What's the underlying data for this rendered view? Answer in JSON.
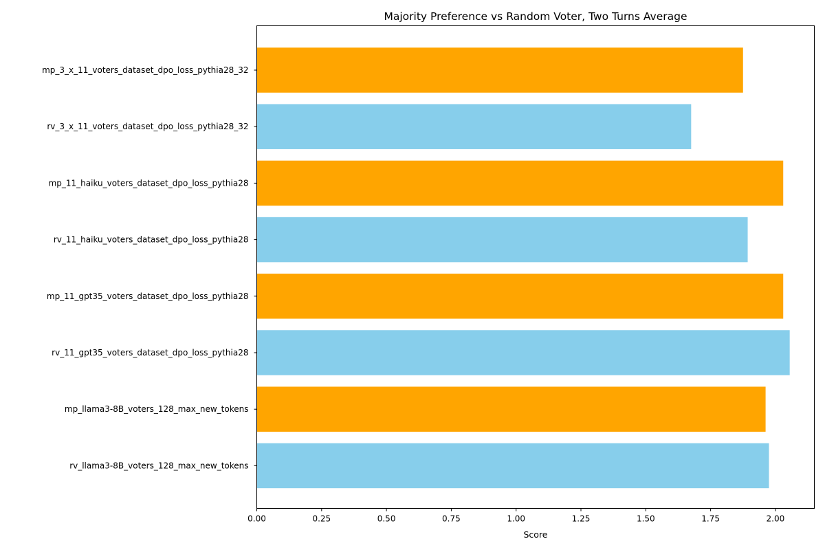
{
  "chart_data": {
    "type": "bar",
    "orientation": "horizontal",
    "title": "Majority Preference vs Random Voter, Two Turns Average",
    "xlabel": "Score",
    "ylabel": "",
    "xlim": [
      0,
      2.15
    ],
    "xticks": [
      "0.00",
      "0.25",
      "0.50",
      "0.75",
      "1.00",
      "1.25",
      "1.50",
      "1.75",
      "2.00"
    ],
    "grid": false,
    "categories": [
      "mp_3_x_11_voters_dataset_dpo_loss_pythia28_32",
      "rv_3_x_11_voters_dataset_dpo_loss_pythia28_32",
      "mp_11_haiku_voters_dataset_dpo_loss_pythia28",
      "rv_11_haiku_voters_dataset_dpo_loss_pythia28",
      "mp_11_gpt35_voters_dataset_dpo_loss_pythia28",
      "rv_11_gpt35_voters_dataset_dpo_loss_pythia28",
      "mp_llama3-8B_voters_128_max_new_tokens",
      "rv_llama3-8B_voters_128_max_new_tokens"
    ],
    "values": [
      1.875,
      1.675,
      2.03,
      1.893,
      2.03,
      2.055,
      1.962,
      1.975
    ],
    "colors": [
      "#FFA500",
      "#87CEEB",
      "#FFA500",
      "#87CEEB",
      "#FFA500",
      "#87CEEB",
      "#FFA500",
      "#87CEEB"
    ]
  }
}
